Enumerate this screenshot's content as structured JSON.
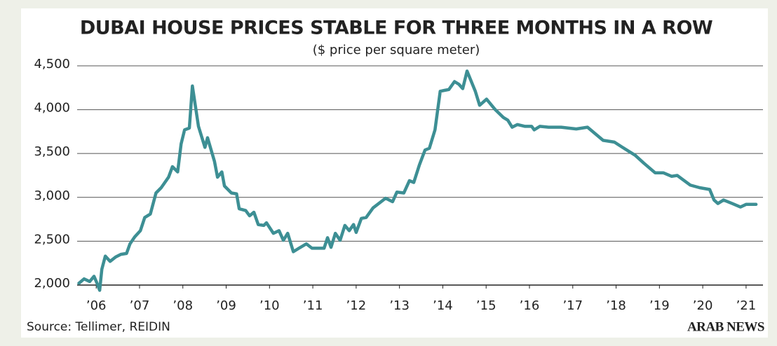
{
  "chart_data": {
    "type": "line",
    "title": "DUBAI HOUSE PRICES STABLE FOR THREE MONTHS IN A ROW",
    "subtitle": "($ price per square meter)",
    "source": "Source: Tellimer, REIDIN",
    "publisher": "ARAB NEWS",
    "color": "#3d8f94",
    "grid": true,
    "xlim": [
      2005.56,
      2021.39
    ],
    "ylim": [
      1900,
      4550
    ],
    "xticks": [
      {
        "value": 2006,
        "label": "’06"
      },
      {
        "value": 2007,
        "label": "’07"
      },
      {
        "value": 2008,
        "label": "’08"
      },
      {
        "value": 2009,
        "label": "’09"
      },
      {
        "value": 2010,
        "label": "’10"
      },
      {
        "value": 2011,
        "label": "’11"
      },
      {
        "value": 2012,
        "label": "’12"
      },
      {
        "value": 2013,
        "label": "’13"
      },
      {
        "value": 2014,
        "label": "’14"
      },
      {
        "value": 2015,
        "label": "’15"
      },
      {
        "value": 2016,
        "label": "’16"
      },
      {
        "value": 2017,
        "label": "’17"
      },
      {
        "value": 2018,
        "label": "’18"
      },
      {
        "value": 2019,
        "label": "’19"
      },
      {
        "value": 2020,
        "label": "’20"
      },
      {
        "value": 2021,
        "label": "’21"
      }
    ],
    "yticks": [
      {
        "value": 2000,
        "label": "2,000"
      },
      {
        "value": 2500,
        "label": "2,500"
      },
      {
        "value": 3000,
        "label": "3,000"
      },
      {
        "value": 3500,
        "label": "3,500"
      },
      {
        "value": 4000,
        "label": "4,000"
      },
      {
        "value": 4500,
        "label": "4,500"
      }
    ],
    "x": [
      2005.6,
      2005.72,
      2005.85,
      2005.95,
      2006.02,
      2006.08,
      2006.13,
      2006.21,
      2006.32,
      2006.45,
      2006.57,
      2006.7,
      2006.78,
      2006.89,
      2007.02,
      2007.12,
      2007.25,
      2007.38,
      2007.5,
      2007.67,
      2007.76,
      2007.88,
      2007.96,
      2008.04,
      2008.15,
      2008.22,
      2008.36,
      2008.51,
      2008.57,
      2008.73,
      2008.8,
      2008.9,
      2008.96,
      2009.12,
      2009.24,
      2009.3,
      2009.45,
      2009.54,
      2009.64,
      2009.74,
      2009.87,
      2009.93,
      2010.09,
      2010.22,
      2010.32,
      2010.42,
      2010.55,
      2010.68,
      2010.85,
      2010.98,
      2011.26,
      2011.34,
      2011.42,
      2011.52,
      2011.63,
      2011.74,
      2011.84,
      2011.94,
      2012.0,
      2012.12,
      2012.23,
      2012.39,
      2012.68,
      2012.84,
      2012.94,
      2013.1,
      2013.23,
      2013.33,
      2013.46,
      2013.59,
      2013.69,
      2013.82,
      2013.94,
      2014.14,
      2014.27,
      2014.37,
      2014.46,
      2014.56,
      2014.75,
      2014.85,
      2015.01,
      2015.21,
      2015.4,
      2015.5,
      2015.6,
      2015.72,
      2015.89,
      2016.05,
      2016.11,
      2016.24,
      2016.44,
      2016.73,
      2017.08,
      2017.34,
      2017.7,
      2017.96,
      2018.18,
      2018.44,
      2018.64,
      2018.9,
      2019.09,
      2019.28,
      2019.41,
      2019.71,
      2019.93,
      2020.16,
      2020.26,
      2020.35,
      2020.48,
      2020.68,
      2020.87,
      2021.0,
      2021.23
    ],
    "values": [
      2020,
      2070,
      2040,
      2100,
      2020,
      1940,
      2180,
      2330,
      2270,
      2320,
      2350,
      2360,
      2470,
      2550,
      2620,
      2770,
      2810,
      3050,
      3110,
      3230,
      3350,
      3290,
      3610,
      3770,
      3790,
      4270,
      3810,
      3570,
      3680,
      3410,
      3230,
      3290,
      3130,
      3050,
      3040,
      2870,
      2850,
      2790,
      2830,
      2690,
      2680,
      2710,
      2590,
      2620,
      2510,
      2590,
      2380,
      2420,
      2470,
      2420,
      2420,
      2540,
      2430,
      2590,
      2510,
      2680,
      2620,
      2690,
      2600,
      2760,
      2770,
      2880,
      2990,
      2950,
      3060,
      3050,
      3190,
      3170,
      3370,
      3540,
      3560,
      3770,
      4210,
      4230,
      4320,
      4290,
      4240,
      4440,
      4210,
      4050,
      4120,
      4000,
      3910,
      3880,
      3800,
      3830,
      3810,
      3810,
      3770,
      3810,
      3800,
      3800,
      3780,
      3800,
      3650,
      3630,
      3560,
      3480,
      3390,
      3280,
      3280,
      3240,
      3250,
      3140,
      3110,
      3090,
      2970,
      2930,
      2970,
      2930,
      2890,
      2920,
      2920
    ]
  }
}
